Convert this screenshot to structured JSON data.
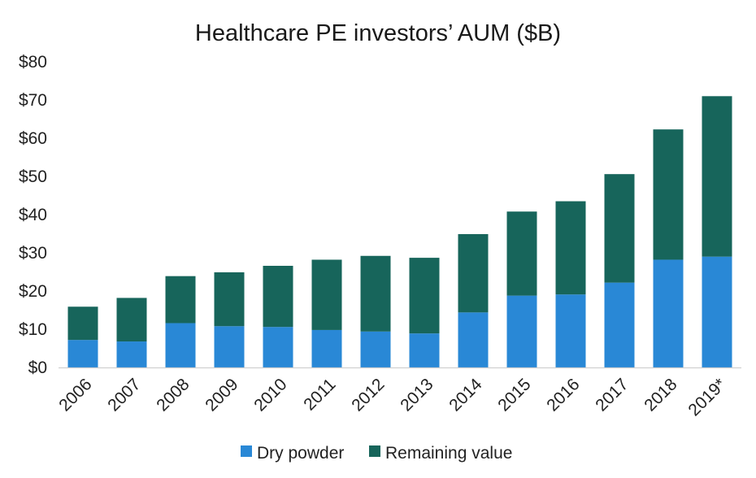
{
  "chart_data": {
    "type": "bar",
    "stacked": true,
    "title": "Healthcare PE investors’ AUM ($B)",
    "xlabel": "",
    "ylabel": "",
    "categories": [
      "2006",
      "2007",
      "2008",
      "2009",
      "2010",
      "2011",
      "2012",
      "2013",
      "2014",
      "2015",
      "2016",
      "2017",
      "2018",
      "2019*"
    ],
    "series": [
      {
        "name": "Dry powder",
        "color": "#2988D6",
        "values": [
          7.2,
          6.8,
          11.6,
          10.8,
          10.6,
          9.8,
          9.4,
          8.9,
          14.4,
          18.8,
          19.1,
          22.2,
          28.2,
          29.0
        ]
      },
      {
        "name": "Remaining value",
        "color": "#17655B",
        "values": [
          8.7,
          11.4,
          12.3,
          14.1,
          16.0,
          18.4,
          19.8,
          19.8,
          20.5,
          22.0,
          24.4,
          28.4,
          34.1,
          42.0
        ]
      }
    ],
    "ylim": [
      0,
      80
    ],
    "yticks": [
      0,
      10,
      20,
      30,
      40,
      50,
      60,
      70,
      80
    ],
    "ytick_labels": [
      "$0",
      "$10",
      "$20",
      "$30",
      "$40",
      "$50",
      "$60",
      "$70",
      "$80"
    ],
    "grid": false,
    "legend_position": "bottom"
  }
}
